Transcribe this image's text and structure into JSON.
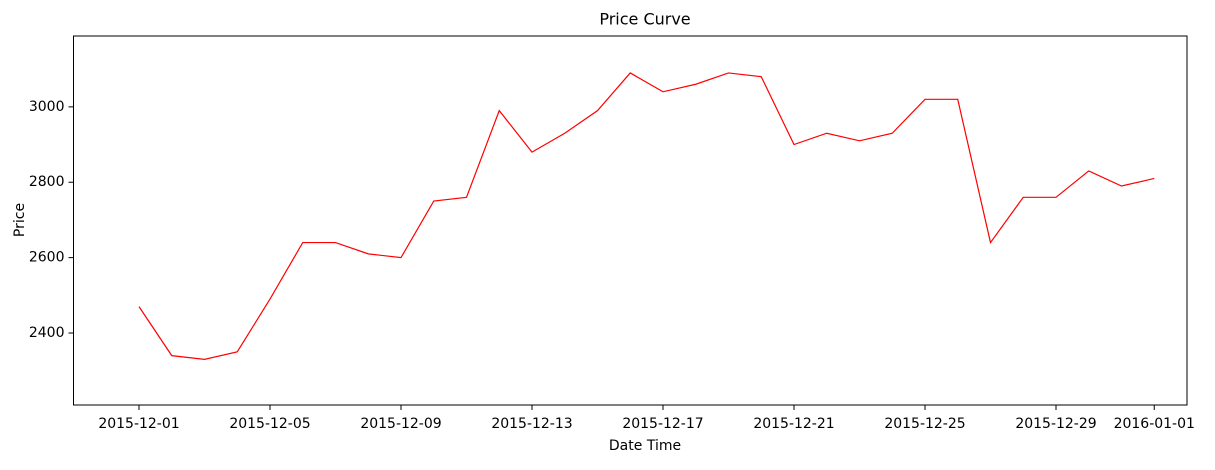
{
  "chart_data": {
    "type": "line",
    "title": "Price Curve",
    "x_label": "Date Time",
    "y_label": "Price",
    "x": [
      "2015-12-01",
      "2015-12-02",
      "2015-12-03",
      "2015-12-04",
      "2015-12-05",
      "2015-12-06",
      "2015-12-07",
      "2015-12-08",
      "2015-12-09",
      "2015-12-10",
      "2015-12-11",
      "2015-12-12",
      "2015-12-13",
      "2015-12-14",
      "2015-12-15",
      "2015-12-16",
      "2015-12-17",
      "2015-12-18",
      "2015-12-19",
      "2015-12-20",
      "2015-12-21",
      "2015-12-22",
      "2015-12-23",
      "2015-12-24",
      "2015-12-25",
      "2015-12-26",
      "2015-12-27",
      "2015-12-28",
      "2015-12-29",
      "2015-12-30",
      "2015-12-31",
      "2016-01-01"
    ],
    "series": [
      {
        "name": "Price",
        "color": "#ff0000",
        "values": [
          2470,
          2340,
          2330,
          2350,
          2490,
          2640,
          2640,
          2610,
          2600,
          2750,
          2760,
          2990,
          2880,
          2930,
          2990,
          3090,
          3040,
          3060,
          3090,
          3080,
          2900,
          2930,
          2910,
          2930,
          3020,
          3020,
          2640,
          2760,
          2760,
          2830,
          2790,
          2810
        ]
      }
    ],
    "xlim": [
      "2015-11-29",
      "2016-01-02"
    ],
    "xticks": [
      "2015-12-01",
      "2015-12-05",
      "2015-12-09",
      "2015-12-13",
      "2015-12-17",
      "2015-12-21",
      "2015-12-25",
      "2015-12-29",
      "2016-01-01"
    ],
    "ylim": [
      2209,
      3188
    ],
    "yticks": [
      2400,
      2600,
      2800,
      3000
    ]
  }
}
